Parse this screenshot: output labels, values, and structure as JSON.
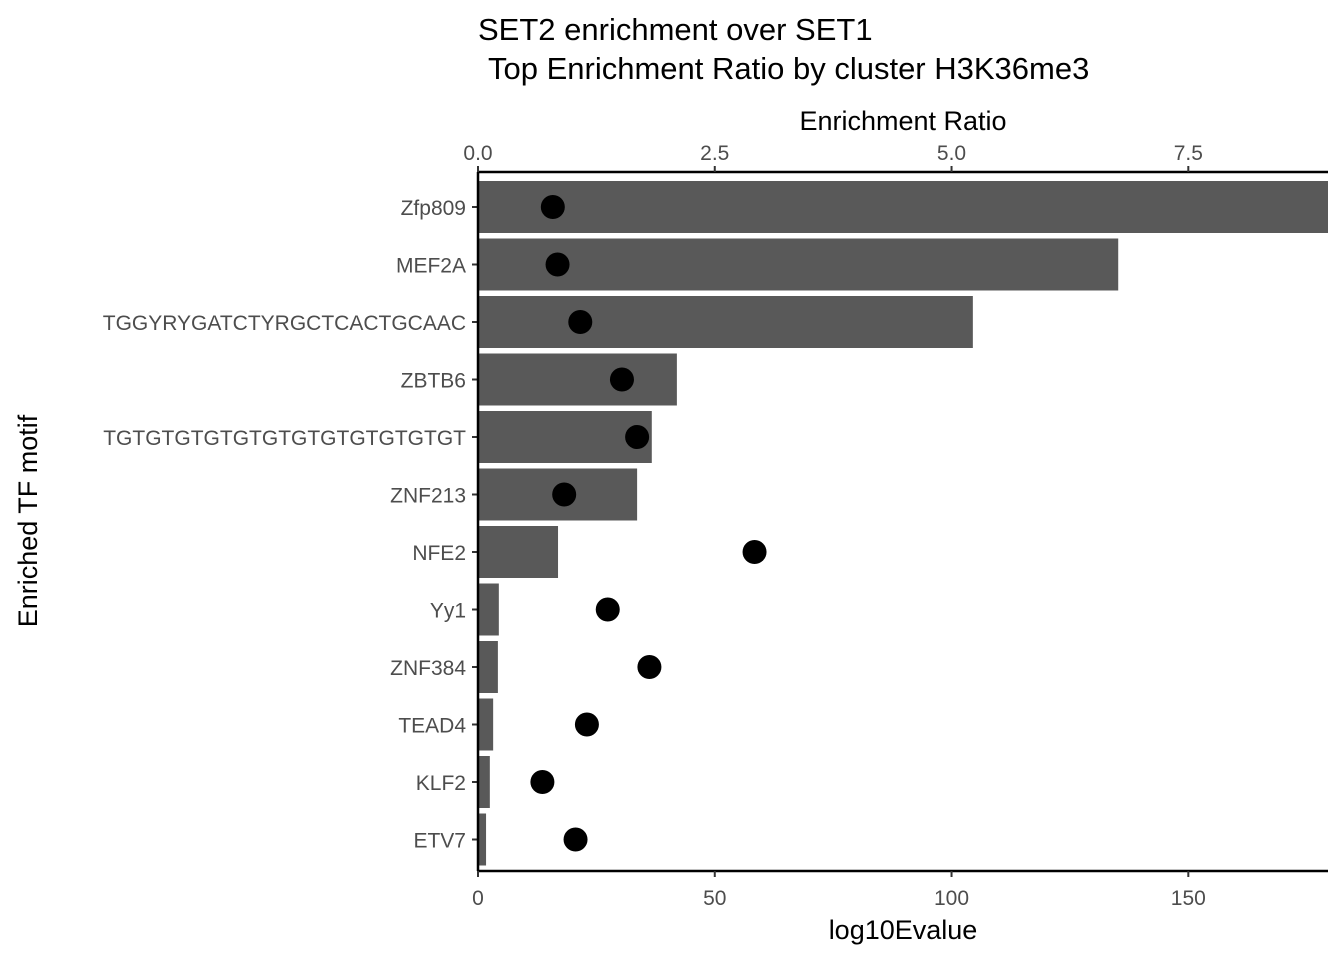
{
  "chart_data": {
    "type": "bar",
    "orientation": "horizontal",
    "title_line1": "SET2 enrichment over SET1",
    "title_line2": "Top Enrichment Ratio by cluster  H3K36me3",
    "xlabel": "log10Evalue",
    "x2label": "Enrichment Ratio",
    "ylabel": "Enriched TF motif",
    "xlim": [
      0,
      179.5
    ],
    "x_ticks": [
      0,
      50,
      100,
      150
    ],
    "x_tick_labels": [
      "0",
      "50",
      "100",
      "150"
    ],
    "x2_ticks": [
      0,
      2.5,
      5.0,
      7.5
    ],
    "x2_tick_labels": [
      "0.0",
      "2.5",
      "5.0",
      "7.5"
    ],
    "x2_scale_factor": 20,
    "categories": [
      "Zfp809",
      "MEF2A",
      "TGGYRYGATCTYRGCTCACTGCAAC",
      "ZBTB6",
      "TGTGTGTGTGTGTGTGTGTGTGTGT",
      "ZNF213",
      "NFE2",
      "Yy1",
      "ZNF384",
      "TEAD4",
      "KLF2",
      "ETV7"
    ],
    "series": [
      {
        "name": "log10Evalue",
        "mark": "bar",
        "color": "#595959",
        "values": [
          180,
          135.2,
          104.5,
          42.0,
          36.7,
          33.6,
          16.9,
          4.4,
          4.2,
          3.2,
          2.5,
          1.7
        ]
      },
      {
        "name": "Enrichment Ratio",
        "mark": "point",
        "color": "#000000",
        "values": [
          0.79,
          0.84,
          1.08,
          1.52,
          1.68,
          0.91,
          2.92,
          1.37,
          1.81,
          1.15,
          0.68,
          1.03
        ]
      }
    ],
    "grid": false
  }
}
